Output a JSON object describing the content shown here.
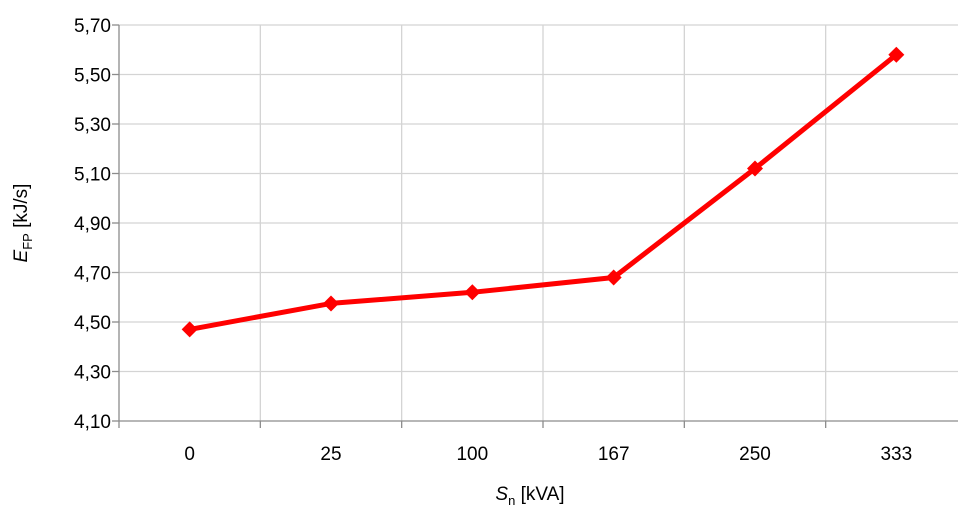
{
  "chart_data": {
    "type": "line",
    "categories": [
      "0",
      "25",
      "100",
      "167",
      "250",
      "333"
    ],
    "series": [
      {
        "values": [
          4.47,
          4.575,
          4.62,
          4.68,
          5.12,
          5.58
        ],
        "color": "#ff0000",
        "marker": "diamond"
      }
    ],
    "y_ticks": [
      "4,10",
      "4,30",
      "4,50",
      "4,70",
      "4,90",
      "5,10",
      "5,30",
      "5,50",
      "5,70"
    ],
    "ylim": [
      4.1,
      5.7
    ],
    "grid": true,
    "legend": "none",
    "xlabel": {
      "main": "S",
      "sub": "n",
      "unit": " [kVA]"
    },
    "ylabel": {
      "main": "E",
      "sub": "FP",
      "unit": " [kJ/s]"
    }
  }
}
